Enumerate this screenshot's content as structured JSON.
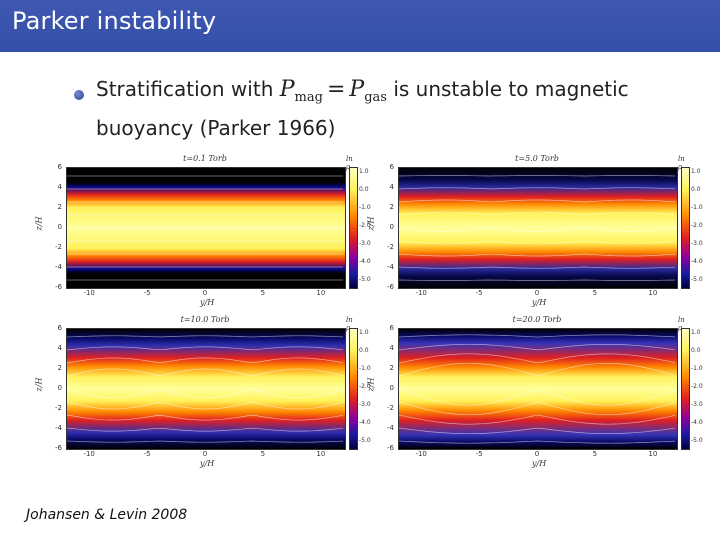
{
  "slide": {
    "title": "Parker instability",
    "bullet": {
      "text_before": "Stratification with",
      "math_lhs": "P",
      "math_lhs_sub": "mag",
      "math_op": "=",
      "math_rhs": "P",
      "math_rhs_sub": "gas",
      "text_after": "is unstable to magnetic buoyancy (Parker 1966)"
    },
    "citation": "Johansen & Levin 2008"
  },
  "chart_data": [
    {
      "type": "heatmap",
      "title": "t=0.1 Torb",
      "xlabel": "y/H",
      "ylabel": "z/H",
      "colorbar_label": "ln ρ",
      "xlim": [
        -12,
        12
      ],
      "ylim": [
        -6,
        6
      ],
      "x_ticks": [
        "-10",
        "-5",
        "0",
        "5",
        "10"
      ],
      "y_ticks": [
        "6",
        "4",
        "2",
        "0",
        "-2",
        "-4",
        "-6"
      ],
      "colorbar_ticks": [
        "1.0",
        "0.0",
        "-1.0",
        "-2.0",
        "-3.0",
        "-4.0",
        "-5.0"
      ],
      "description_state": "horizontal stratified layers"
    },
    {
      "type": "heatmap",
      "title": "t=5.0 Torb",
      "xlabel": "y/H",
      "ylabel": "z/H",
      "colorbar_label": "ln ρ",
      "xlim": [
        -12,
        12
      ],
      "ylim": [
        -6,
        6
      ],
      "x_ticks": [
        "-10",
        "-5",
        "0",
        "5",
        "10"
      ],
      "y_ticks": [
        "6",
        "4",
        "2",
        "0",
        "-2",
        "-4",
        "-6"
      ],
      "colorbar_ticks": [
        "1.0",
        "0.0",
        "-1.0",
        "-2.0",
        "-3.0",
        "-4.0",
        "-5.0"
      ],
      "description_state": "undulating layers"
    },
    {
      "type": "heatmap",
      "title": "t=10.0 Torb",
      "xlabel": "y/H",
      "ylabel": "z/H",
      "colorbar_label": "ln ρ",
      "xlim": [
        -12,
        12
      ],
      "ylim": [
        -6,
        6
      ],
      "x_ticks": [
        "-10",
        "-5",
        "0",
        "5",
        "10"
      ],
      "y_ticks": [
        "6",
        "4",
        "2",
        "0",
        "-2",
        "-4",
        "-6"
      ],
      "colorbar_ticks": [
        "1.0",
        "0.0",
        "-1.0",
        "-2.0",
        "-3.0",
        "-4.0",
        "-5.0"
      ],
      "description_state": "buoyant loops"
    },
    {
      "type": "heatmap",
      "title": "t=20.0 Torb",
      "xlabel": "y/H",
      "ylabel": "z/H",
      "colorbar_label": "ln ρ",
      "xlim": [
        -12,
        12
      ],
      "ylim": [
        -6,
        6
      ],
      "x_ticks": [
        "-10",
        "-5",
        "0",
        "5",
        "10"
      ],
      "y_ticks": [
        "6",
        "4",
        "2",
        "0",
        "-2",
        "-4",
        "-6"
      ],
      "colorbar_ticks": [
        "1.0",
        "0.0",
        "-1.0",
        "-2.0",
        "-3.0",
        "-4.0",
        "-5.0"
      ],
      "description_state": "large arched loops"
    }
  ]
}
